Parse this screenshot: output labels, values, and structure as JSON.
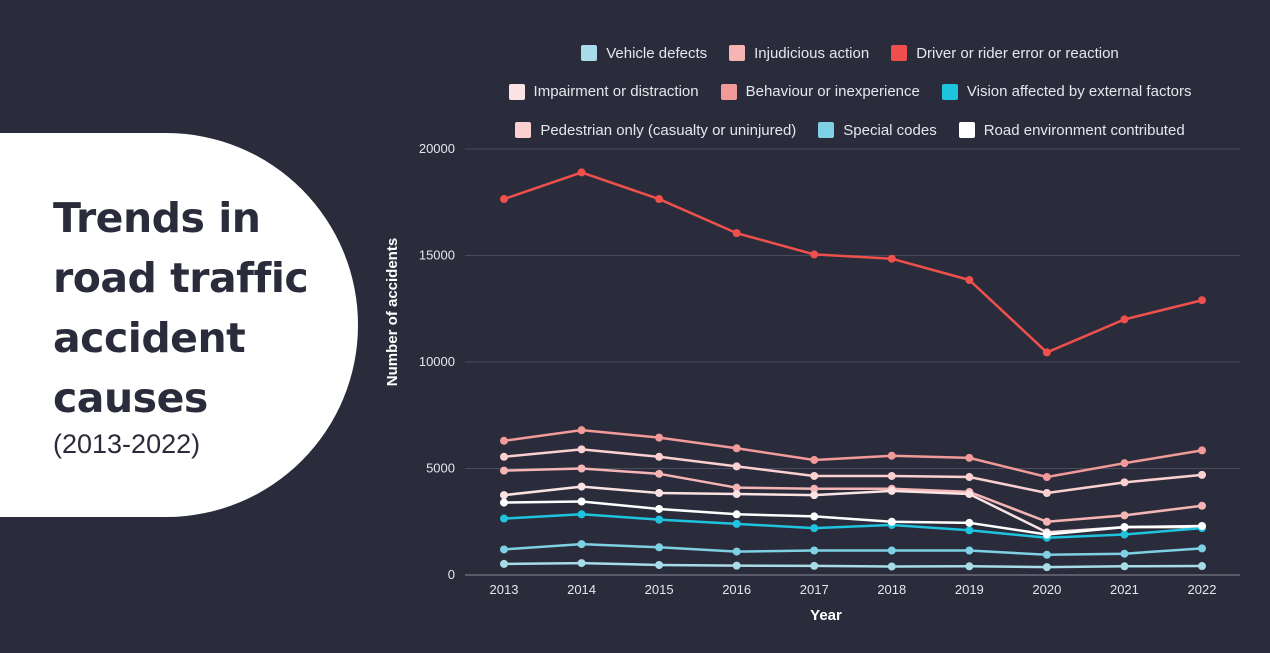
{
  "title": {
    "lines": [
      "Trends in",
      "road traffic",
      "accident",
      "causes"
    ],
    "subtitle": "(2013-2022)"
  },
  "colors": {
    "background": "#2b2c3b",
    "panel": "#ffffff",
    "gridline": "#4a4b5c"
  },
  "chart_data": {
    "type": "line",
    "xlabel": "Year",
    "ylabel": "Number of accidents",
    "ylim": [
      0,
      20000
    ],
    "yticks": [
      0,
      5000,
      10000,
      15000,
      20000
    ],
    "ytick_labels": [
      "0",
      "5000",
      "10000",
      "15000",
      "20000"
    ],
    "grid": true,
    "legend_position": "top",
    "x": [
      "2013",
      "2014",
      "2015",
      "2016",
      "2017",
      "2018",
      "2019",
      "2020",
      "2021",
      "2022"
    ],
    "series": [
      {
        "name": "Vehicle defects",
        "color": "#a8dce8",
        "values": [
          520,
          560,
          470,
          440,
          430,
          400,
          410,
          370,
          410,
          420
        ]
      },
      {
        "name": "Injudicious action",
        "color": "#f5b5b5",
        "values": [
          4900,
          5000,
          4750,
          4100,
          4050,
          4050,
          3900,
          2500,
          2800,
          3250
        ]
      },
      {
        "name": "Driver or rider error or reaction",
        "color": "#f0504c",
        "values": [
          17650,
          18900,
          17650,
          16050,
          15050,
          14850,
          13850,
          10450,
          12000,
          12900
        ]
      },
      {
        "name": "Impairment or distraction",
        "color": "#fbe3e3",
        "values": [
          3750,
          4150,
          3850,
          3800,
          3750,
          3950,
          3800,
          2000,
          2250,
          2250
        ]
      },
      {
        "name": "Behaviour or inexperience",
        "color": "#f29a9a",
        "values": [
          6300,
          6800,
          6450,
          5950,
          5400,
          5600,
          5500,
          4600,
          5250,
          5850
        ]
      },
      {
        "name": "Vision affected by external factors",
        "color": "#1ec3de",
        "values": [
          2650,
          2850,
          2600,
          2400,
          2200,
          2350,
          2100,
          1750,
          1900,
          2200
        ]
      },
      {
        "name": "Pedestrian only (casualty or uninjured)",
        "color": "#fad0d0",
        "values": [
          5550,
          5900,
          5550,
          5100,
          4650,
          4650,
          4600,
          3850,
          4350,
          4700
        ]
      },
      {
        "name": "Special codes",
        "color": "#7ed0e4",
        "values": [
          1200,
          1450,
          1300,
          1100,
          1150,
          1150,
          1150,
          950,
          1000,
          1250
        ]
      },
      {
        "name": "Road environment contributed",
        "color": "#ffffff",
        "values": [
          3400,
          3450,
          3100,
          2850,
          2750,
          2500,
          2450,
          1900,
          2250,
          2300
        ]
      }
    ],
    "legend_rows": [
      [
        0,
        1,
        2
      ],
      [
        3,
        4,
        5
      ],
      [
        6,
        7,
        8
      ]
    ]
  }
}
